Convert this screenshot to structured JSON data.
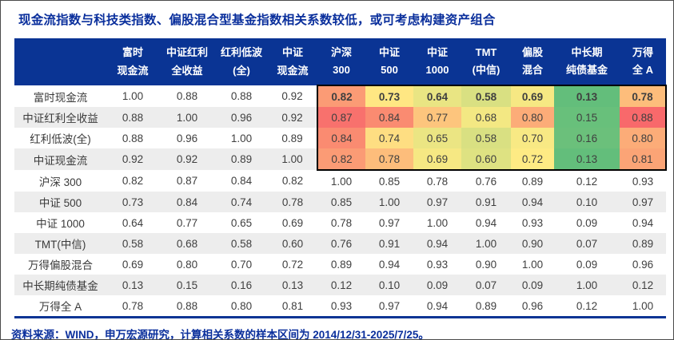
{
  "chart_data": {
    "type": "heatmap",
    "title": "现金流指数与科技类指数、偏股混合型基金指数相关系数较低，或可考虑构建资产组合",
    "footnote": "资料来源：WIND，申万宏源研究，计算相关系数的样本区间为 2014/12/31-2025/7/25。",
    "col_headers": [
      "富时\n现金流",
      "中证红利\n全收益",
      "红利低波\n(全)",
      "中证\n现金流",
      "沪深\n300",
      "中证\n500",
      "中证\n1000",
      "TMT\n(中信)",
      "偏股\n混合",
      "中长期\n纯债基金",
      "万得\n全 A"
    ],
    "row_labels": [
      "富时现金流",
      "中证红利全收益",
      "红利低波(全)",
      "中证现金流",
      "沪深 300",
      "中证 500",
      "中证 1000",
      "TMT(中信)",
      "万得偏股混合",
      "中长期纯债基金",
      "万得全 A"
    ],
    "matrix": [
      [
        1.0,
        0.88,
        0.88,
        0.92,
        0.82,
        0.73,
        0.64,
        0.58,
        0.69,
        0.13,
        0.78
      ],
      [
        0.88,
        1.0,
        0.96,
        0.92,
        0.87,
        0.84,
        0.77,
        0.68,
        0.8,
        0.15,
        0.88
      ],
      [
        0.88,
        0.96,
        1.0,
        0.89,
        0.84,
        0.74,
        0.65,
        0.58,
        0.7,
        0.16,
        0.8
      ],
      [
        0.92,
        0.92,
        0.89,
        1.0,
        0.82,
        0.78,
        0.69,
        0.6,
        0.72,
        0.13,
        0.81
      ],
      [
        0.82,
        0.87,
        0.84,
        0.82,
        1.0,
        0.85,
        0.78,
        0.76,
        0.89,
        0.12,
        0.93
      ],
      [
        0.73,
        0.84,
        0.74,
        0.78,
        0.85,
        1.0,
        0.97,
        0.91,
        0.94,
        0.1,
        0.97
      ],
      [
        0.64,
        0.77,
        0.65,
        0.69,
        0.78,
        0.97,
        1.0,
        0.94,
        0.93,
        0.09,
        0.94
      ],
      [
        0.58,
        0.68,
        0.58,
        0.6,
        0.76,
        0.91,
        0.94,
        1.0,
        0.9,
        0.07,
        0.89
      ],
      [
        0.69,
        0.8,
        0.7,
        0.72,
        0.89,
        0.94,
        0.93,
        0.9,
        1.0,
        0.09,
        0.96
      ],
      [
        0.13,
        0.15,
        0.16,
        0.13,
        0.12,
        0.1,
        0.09,
        0.07,
        0.09,
        1.0,
        0.12
      ],
      [
        0.78,
        0.88,
        0.8,
        0.81,
        0.93,
        0.97,
        0.94,
        0.89,
        0.96,
        0.12,
        1.0
      ]
    ],
    "value_format": "2dp",
    "highlight_block": {
      "row_start": 0,
      "row_end": 3,
      "col_start": 4,
      "col_end": 10,
      "scale_min": 0.13,
      "scale_mid": 0.725,
      "scale_max": 0.88,
      "color_low": "#63BE7B",
      "color_mid": "#FFEB84",
      "color_high": "#F8696B",
      "border_color": "#000000",
      "bold_row": 0
    },
    "layout": {
      "legend": "none",
      "grid": "row-stripes"
    }
  },
  "colors": {
    "navy_text": "#0A2F9C",
    "header_bg": "#0A3494",
    "stripe_bg": "#EDEDED",
    "cell_text": "#3F3F3F",
    "bottom_rule": "#0A3494"
  }
}
